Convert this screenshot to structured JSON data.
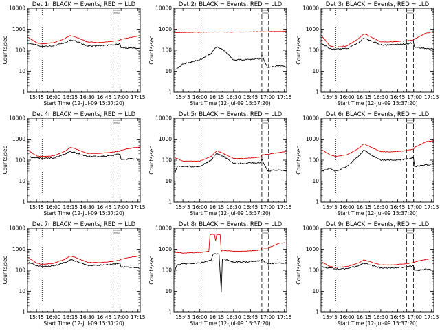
{
  "figure": {
    "x_axis_label": "Start Time (12-Jul-09 15:37:20)",
    "y_axis_label": "Counts/sec",
    "x_ticks": [
      "15:45",
      "16:00",
      "16:15",
      "16:30",
      "16:45",
      "17:00",
      "17:15"
    ],
    "y_ticks": [
      "1",
      "10",
      "100",
      "1000",
      "10000"
    ],
    "colors": {
      "events": "#000000",
      "lld": "#dd0000",
      "background": "#ffffff"
    }
  },
  "chart_data": [
    {
      "type": "line",
      "title": "Det 1r BLACK = Events, RED = LLD",
      "xlabel": "Start Time (12-Jul-09 15:37:20)",
      "ylabel": "Counts/sec",
      "yscale": "log",
      "xlim": [
        "15:37",
        "17:17"
      ],
      "ylim": [
        1,
        10000
      ],
      "vlines_dotted": [
        "15:50"
      ],
      "vlines_dashed": [
        "16:53",
        "16:59"
      ],
      "series": [
        {
          "name": "Events",
          "color": "black",
          "x": [
            "15:38",
            "15:45",
            "15:50",
            "16:00",
            "16:10",
            "16:15",
            "16:20",
            "16:30",
            "16:40",
            "16:52",
            "16:59",
            "17:00",
            "17:10",
            "17:17"
          ],
          "values": [
            220,
            175,
            150,
            160,
            230,
            300,
            270,
            160,
            160,
            180,
            200,
            130,
            125,
            120
          ]
        },
        {
          "name": "LLD",
          "color": "red",
          "x": [
            "15:38",
            "15:45",
            "15:50",
            "16:00",
            "16:10",
            "16:15",
            "16:20",
            "16:30",
            "16:40",
            "16:52",
            "16:59",
            "17:00",
            "17:10",
            "17:17"
          ],
          "values": [
            400,
            230,
            200,
            230,
            350,
            500,
            420,
            250,
            230,
            260,
            300,
            330,
            420,
            500
          ]
        }
      ]
    },
    {
      "type": "line",
      "title": "Det 2r BLACK = Events, RED = LLD",
      "xlabel": "Start Time (12-Jul-09 15:37:20)",
      "ylabel": "Counts/sec",
      "yscale": "log",
      "xlim": [
        "15:37",
        "17:17"
      ],
      "ylim": [
        1,
        10000
      ],
      "vlines_dotted": [
        "16:03"
      ],
      "vlines_dashed": [
        "16:55",
        "17:01"
      ],
      "series": [
        {
          "name": "Events",
          "color": "black",
          "x": [
            "15:38",
            "15:40",
            "15:45",
            "16:00",
            "16:10",
            "16:15",
            "16:20",
            "16:30",
            "16:40",
            "16:54",
            "16:55",
            "17:00",
            "17:10",
            "17:17"
          ],
          "values": [
            12,
            14,
            22,
            35,
            70,
            150,
            110,
            35,
            35,
            40,
            60,
            15,
            18,
            16
          ]
        },
        {
          "name": "LLD",
          "color": "red",
          "x": [
            "15:38",
            "15:45",
            "16:00",
            "16:15",
            "16:30",
            "16:45",
            "17:00",
            "17:17"
          ],
          "values": [
            700,
            700,
            720,
            740,
            730,
            750,
            760,
            800
          ]
        }
      ]
    },
    {
      "type": "line",
      "title": "Det 3r BLACK = Events, RED = LLD",
      "xlabel": "Start Time (12-Jul-09 15:37:20)",
      "ylabel": "Counts/sec",
      "yscale": "log",
      "xlim": [
        "15:37",
        "17:17"
      ],
      "ylim": [
        1,
        10000
      ],
      "vlines_dotted": [
        "15:50"
      ],
      "vlines_dashed": [
        "16:53",
        "16:59"
      ],
      "series": [
        {
          "name": "Events",
          "color": "black",
          "x": [
            "15:38",
            "15:45",
            "15:50",
            "16:00",
            "16:10",
            "16:15",
            "16:20",
            "16:30",
            "16:40",
            "16:52",
            "16:59",
            "17:00",
            "17:10",
            "17:17"
          ],
          "values": [
            200,
            120,
            110,
            120,
            220,
            380,
            300,
            180,
            180,
            200,
            230,
            140,
            120,
            115
          ]
        },
        {
          "name": "LLD",
          "color": "red",
          "x": [
            "15:38",
            "15:45",
            "15:50",
            "16:00",
            "16:10",
            "16:15",
            "16:20",
            "16:30",
            "16:40",
            "16:52",
            "16:59",
            "17:00",
            "17:10",
            "17:17"
          ],
          "values": [
            450,
            160,
            140,
            160,
            350,
            600,
            470,
            250,
            250,
            280,
            310,
            340,
            650,
            750
          ]
        }
      ]
    },
    {
      "type": "line",
      "title": "Det 4r BLACK = Events, RED = LLD",
      "xlabel": "Start Time (12-Jul-09 15:37:20)",
      "ylabel": "Counts/sec",
      "yscale": "log",
      "xlim": [
        "15:37",
        "17:17"
      ],
      "ylim": [
        1,
        10000
      ],
      "vlines_dotted": [
        "15:50"
      ],
      "vlines_dashed": [
        "16:53",
        "16:59"
      ],
      "series": [
        {
          "name": "Events",
          "color": "black",
          "x": [
            "15:38",
            "15:45",
            "15:50",
            "16:00",
            "16:10",
            "16:15",
            "16:20",
            "16:30",
            "16:40",
            "16:52",
            "16:59",
            "17:00",
            "17:10",
            "17:17"
          ],
          "values": [
            140,
            130,
            120,
            125,
            190,
            260,
            220,
            150,
            150,
            165,
            200,
            110,
            115,
            110
          ]
        },
        {
          "name": "LLD",
          "color": "red",
          "x": [
            "15:38",
            "15:45",
            "15:50",
            "16:00",
            "16:10",
            "16:15",
            "16:20",
            "16:30",
            "16:40",
            "16:52",
            "16:59",
            "17:00",
            "17:10",
            "17:17"
          ],
          "values": [
            280,
            160,
            150,
            160,
            260,
            400,
            340,
            210,
            210,
            240,
            270,
            300,
            380,
            420
          ]
        }
      ]
    },
    {
      "type": "line",
      "title": "Det 5r BLACK = Events, RED = LLD",
      "xlabel": "Start Time (12-Jul-09 15:37:20)",
      "ylabel": "Counts/sec",
      "yscale": "log",
      "xlim": [
        "15:37",
        "17:17"
      ],
      "ylim": [
        1,
        10000
      ],
      "vlines_dotted": [
        "16:03"
      ],
      "vlines_dashed": [
        "16:55",
        "17:01"
      ],
      "series": [
        {
          "name": "Events",
          "color": "black",
          "x": [
            "15:38",
            "15:40",
            "15:45",
            "16:00",
            "16:10",
            "16:15",
            "16:20",
            "16:30",
            "16:40",
            "16:54",
            "16:55",
            "17:00",
            "17:10",
            "17:17"
          ],
          "values": [
            25,
            50,
            50,
            50,
            100,
            220,
            160,
            70,
            70,
            80,
            110,
            30,
            35,
            30
          ]
        },
        {
          "name": "LLD",
          "color": "red",
          "x": [
            "15:38",
            "15:45",
            "16:00",
            "16:10",
            "16:15",
            "16:20",
            "16:30",
            "16:40",
            "16:54",
            "16:55",
            "17:00",
            "17:10",
            "17:17"
          ],
          "values": [
            130,
            90,
            90,
            150,
            280,
            220,
            120,
            120,
            140,
            180,
            190,
            230,
            260
          ]
        }
      ]
    },
    {
      "type": "line",
      "title": "Det 6r BLACK = Events, RED = LLD",
      "xlabel": "Start Time (12-Jul-09 15:37:20)",
      "ylabel": "Counts/sec",
      "yscale": "log",
      "xlim": [
        "15:37",
        "17:17"
      ],
      "ylim": [
        1,
        10000
      ],
      "vlines_dotted": [
        "15:50"
      ],
      "vlines_dashed": [
        "16:53",
        "16:59"
      ],
      "series": [
        {
          "name": "Events",
          "color": "black",
          "x": [
            "15:38",
            "15:45",
            "15:50",
            "16:00",
            "16:10",
            "16:15",
            "16:20",
            "16:30",
            "16:40",
            "16:52",
            "16:59",
            "17:00",
            "17:10",
            "17:17"
          ],
          "values": [
            30,
            40,
            30,
            50,
            150,
            300,
            200,
            100,
            100,
            110,
            130,
            50,
            60,
            65
          ]
        },
        {
          "name": "LLD",
          "color": "red",
          "x": [
            "15:38",
            "15:45",
            "15:50",
            "16:00",
            "16:10",
            "16:15",
            "16:20",
            "16:30",
            "16:40",
            "16:52",
            "16:59",
            "17:00",
            "17:10",
            "17:17"
          ],
          "values": [
            300,
            180,
            150,
            180,
            350,
            600,
            450,
            250,
            250,
            280,
            330,
            400,
            750,
            850
          ]
        }
      ]
    },
    {
      "type": "line",
      "title": "Det 7r BLACK = Events, RED = LLD",
      "xlabel": "Start Time (12-Jul-09 15:37:20)",
      "ylabel": "Counts/sec",
      "yscale": "log",
      "xlim": [
        "15:37",
        "17:17"
      ],
      "ylim": [
        1,
        10000
      ],
      "vlines_dotted": [
        "15:50"
      ],
      "vlines_dashed": [
        "16:53",
        "16:59"
      ],
      "series": [
        {
          "name": "Events",
          "color": "black",
          "x": [
            "15:38",
            "15:45",
            "15:50",
            "16:00",
            "16:10",
            "16:15",
            "16:20",
            "16:30",
            "16:40",
            "16:52",
            "16:59",
            "17:00",
            "17:10",
            "17:17"
          ],
          "values": [
            230,
            160,
            150,
            160,
            230,
            320,
            270,
            170,
            170,
            190,
            220,
            140,
            140,
            130
          ]
        },
        {
          "name": "LLD",
          "color": "red",
          "x": [
            "15:38",
            "15:45",
            "15:50",
            "16:00",
            "16:10",
            "16:15",
            "16:20",
            "16:30",
            "16:40",
            "16:52",
            "16:59",
            "17:00",
            "17:10",
            "17:17"
          ],
          "values": [
            380,
            220,
            190,
            210,
            330,
            470,
            400,
            240,
            230,
            260,
            300,
            330,
            430,
            480
          ]
        }
      ]
    },
    {
      "type": "line",
      "title": "Det 8r BLACK = Events, RED = LLD",
      "xlabel": "Start Time (12-Jul-09 15:37:20)",
      "ylabel": "Counts/sec",
      "yscale": "log",
      "xlim": [
        "15:37",
        "17:17"
      ],
      "ylim": [
        1,
        10000
      ],
      "vlines_dotted": [
        "16:03"
      ],
      "vlines_dashed": [
        "16:55",
        "17:01"
      ],
      "series": [
        {
          "name": "Events",
          "color": "black",
          "x": [
            "15:38",
            "15:40",
            "15:45",
            "16:00",
            "16:10",
            "16:12",
            "16:13",
            "16:16",
            "16:17",
            "16:19",
            "16:20",
            "16:30",
            "16:40",
            "16:54",
            "16:55",
            "17:00",
            "17:10",
            "17:17"
          ],
          "values": [
            100,
            180,
            200,
            220,
            300,
            600,
            600,
            600,
            600,
            9,
            350,
            250,
            250,
            280,
            320,
            200,
            220,
            220
          ]
        },
        {
          "name": "LLD",
          "color": "red",
          "x": [
            "15:38",
            "15:45",
            "16:00",
            "16:08",
            "16:09",
            "16:13",
            "16:14",
            "16:15",
            "16:18",
            "16:19",
            "16:20",
            "16:30",
            "16:40",
            "16:54",
            "16:55",
            "17:00",
            "17:10",
            "17:17"
          ],
          "values": [
            700,
            650,
            700,
            800,
            5000,
            5000,
            2500,
            5000,
            5000,
            800,
            900,
            800,
            800,
            900,
            1200,
            1100,
            1900,
            2000
          ]
        }
      ]
    },
    {
      "type": "line",
      "title": "Det 9r BLACK = Events, RED = LLD",
      "xlabel": "Start Time (12-Jul-09 15:37:20)",
      "ylabel": "Counts/sec",
      "yscale": "log",
      "xlim": [
        "15:37",
        "17:17"
      ],
      "ylim": [
        1,
        10000
      ],
      "vlines_dotted": [
        "15:50"
      ],
      "vlines_dashed": [
        "16:53",
        "16:59"
      ],
      "series": [
        {
          "name": "Events",
          "color": "black",
          "x": [
            "15:38",
            "15:45",
            "15:50",
            "16:00",
            "16:10",
            "16:15",
            "16:20",
            "16:30",
            "16:40",
            "16:52",
            "16:59",
            "17:00",
            "17:10",
            "17:17"
          ],
          "values": [
            140,
            130,
            115,
            120,
            160,
            210,
            180,
            130,
            130,
            140,
            160,
            100,
            110,
            105
          ]
        },
        {
          "name": "LLD",
          "color": "red",
          "x": [
            "15:38",
            "15:45",
            "15:50",
            "16:00",
            "16:10",
            "16:15",
            "16:20",
            "16:30",
            "16:40",
            "16:52",
            "16:59",
            "17:00",
            "17:10",
            "17:17"
          ],
          "values": [
            240,
            150,
            135,
            150,
            220,
            310,
            260,
            180,
            180,
            200,
            230,
            250,
            330,
            360
          ]
        }
      ]
    }
  ]
}
